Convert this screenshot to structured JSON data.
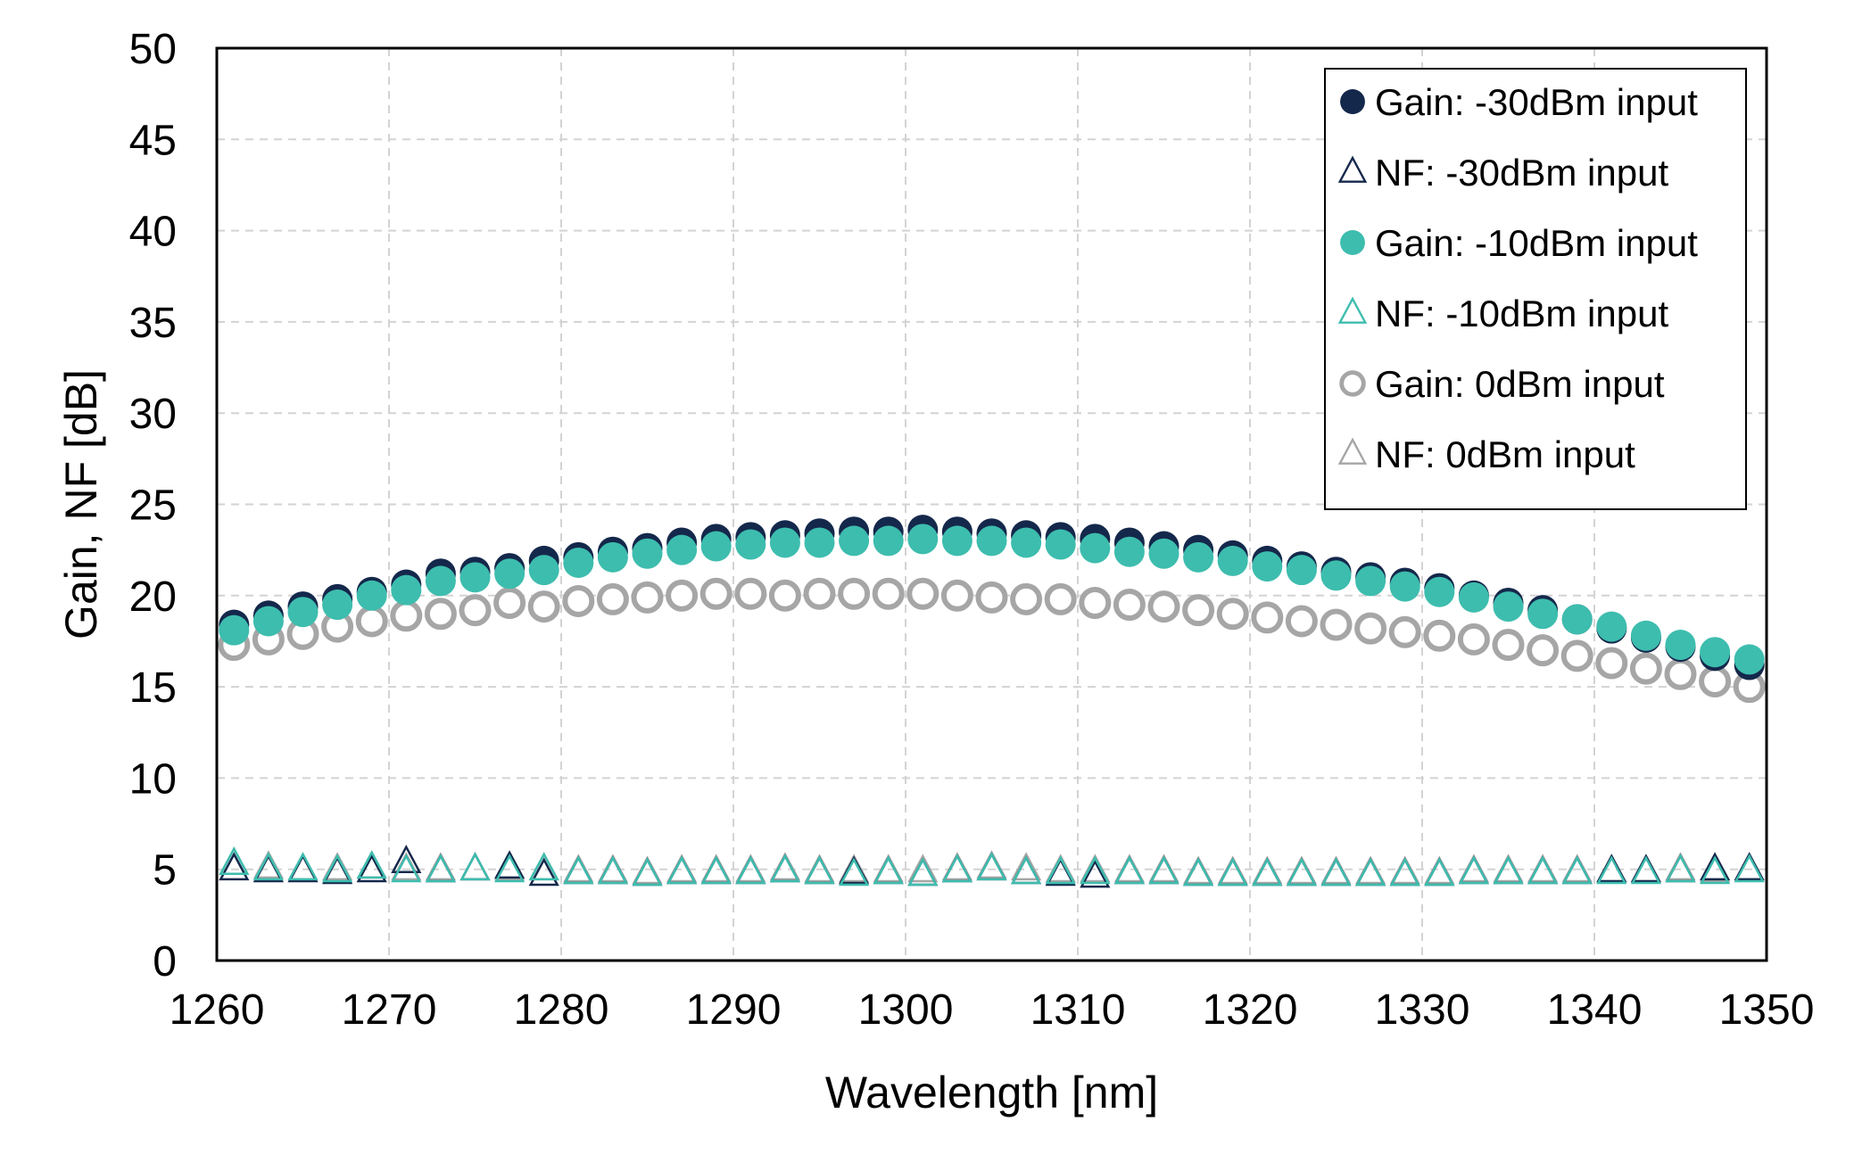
{
  "chart_data": {
    "type": "scatter",
    "title": "",
    "xlabel": "Wavelength [nm]",
    "ylabel": "Gain, NF [dB]",
    "xlim": [
      1260,
      1350
    ],
    "ylim": [
      0,
      50
    ],
    "xticks": [
      "1260",
      "1270",
      "1280",
      "1290",
      "1300",
      "1310",
      "1320",
      "1330",
      "1340",
      "1350"
    ],
    "yticks": [
      "0",
      "5",
      "10",
      "15",
      "20",
      "25",
      "30",
      "35",
      "40",
      "45",
      "50"
    ],
    "grid": true,
    "legend_position": "top-right",
    "x": [
      1261,
      1263,
      1265,
      1267,
      1269,
      1271,
      1273,
      1275,
      1277,
      1279,
      1281,
      1283,
      1285,
      1287,
      1289,
      1291,
      1293,
      1295,
      1297,
      1299,
      1301,
      1303,
      1305,
      1307,
      1309,
      1311,
      1313,
      1315,
      1317,
      1319,
      1321,
      1323,
      1325,
      1327,
      1329,
      1331,
      1333,
      1335,
      1337,
      1339,
      1341,
      1343,
      1345,
      1347,
      1349
    ],
    "series": [
      {
        "name": "Gain: -30dBm input",
        "marker": "filled-circle",
        "color": "#14284B",
        "values": [
          18.4,
          18.9,
          19.4,
          19.8,
          20.2,
          20.6,
          21.2,
          21.3,
          21.5,
          21.9,
          22.1,
          22.4,
          22.6,
          22.9,
          23.1,
          23.2,
          23.3,
          23.4,
          23.5,
          23.5,
          23.6,
          23.5,
          23.4,
          23.3,
          23.2,
          23.1,
          22.9,
          22.7,
          22.5,
          22.2,
          21.9,
          21.6,
          21.3,
          21.0,
          20.7,
          20.4,
          20.0,
          19.6,
          19.2,
          18.7,
          18.2,
          17.7,
          17.2,
          16.7,
          16.2
        ]
      },
      {
        "name": "NF: -30dBm input",
        "marker": "open-triangle",
        "color": "#14284B",
        "values": [
          5.0,
          4.9,
          4.9,
          4.8,
          4.9,
          5.4,
          4.9,
          5.0,
          5.1,
          4.7,
          4.8,
          4.8,
          4.7,
          4.8,
          4.8,
          4.8,
          4.9,
          4.8,
          4.8,
          4.8,
          4.7,
          4.9,
          5.0,
          4.8,
          4.7,
          4.6,
          4.8,
          4.8,
          4.7,
          4.7,
          4.7,
          4.7,
          4.7,
          4.7,
          4.7,
          4.7,
          4.8,
          4.8,
          4.8,
          4.8,
          4.9,
          4.9,
          4.9,
          5.0,
          5.0
        ]
      },
      {
        "name": "Gain: -10dBm input",
        "marker": "filled-circle",
        "color": "#3DBDAE",
        "values": [
          18.1,
          18.6,
          19.1,
          19.5,
          20.0,
          20.3,
          20.8,
          21.0,
          21.2,
          21.4,
          21.8,
          22.1,
          22.3,
          22.5,
          22.7,
          22.8,
          22.9,
          22.9,
          23.0,
          23.0,
          23.1,
          23.0,
          23.0,
          22.9,
          22.8,
          22.6,
          22.4,
          22.3,
          22.1,
          21.9,
          21.6,
          21.4,
          21.1,
          20.8,
          20.5,
          20.2,
          19.9,
          19.4,
          19.0,
          18.7,
          18.3,
          17.8,
          17.3,
          16.9,
          16.5
        ]
      },
      {
        "name": "NF: -10dBm input",
        "marker": "open-triangle",
        "color": "#3DBDAE",
        "values": [
          5.3,
          5.0,
          5.0,
          4.9,
          5.1,
          4.9,
          4.9,
          5.0,
          4.9,
          5.0,
          4.8,
          4.8,
          4.7,
          4.8,
          4.8,
          4.8,
          4.9,
          4.8,
          4.7,
          4.8,
          4.7,
          4.9,
          5.0,
          4.8,
          4.8,
          4.8,
          4.8,
          4.8,
          4.7,
          4.7,
          4.7,
          4.7,
          4.7,
          4.7,
          4.7,
          4.7,
          4.8,
          4.8,
          4.8,
          4.8,
          4.8,
          4.8,
          4.9,
          4.8,
          4.9
        ]
      },
      {
        "name": "Gain: 0dBm input",
        "marker": "open-circle",
        "color": "#A6A6A6",
        "values": [
          17.3,
          17.6,
          17.9,
          18.3,
          18.6,
          18.9,
          19.0,
          19.2,
          19.6,
          19.4,
          19.7,
          19.8,
          19.9,
          20.0,
          20.1,
          20.1,
          20.0,
          20.1,
          20.1,
          20.1,
          20.1,
          20.0,
          19.9,
          19.8,
          19.8,
          19.6,
          19.5,
          19.4,
          19.2,
          19.0,
          18.8,
          18.6,
          18.4,
          18.2,
          18.0,
          17.8,
          17.6,
          17.3,
          17.0,
          16.7,
          16.3,
          16.0,
          15.7,
          15.3,
          15.0
        ]
      },
      {
        "name": "NF: 0dBm input",
        "marker": "open-triangle",
        "color": "#A6A6A6",
        "values": [
          5.3,
          5.1,
          5.0,
          5.0,
          5.1,
          5.0,
          5.0,
          5.0,
          5.0,
          5.0,
          4.9,
          4.9,
          4.8,
          4.9,
          4.9,
          4.9,
          5.0,
          4.9,
          4.9,
          4.9,
          4.9,
          5.0,
          5.1,
          5.0,
          4.9,
          4.9,
          4.9,
          4.9,
          4.8,
          4.8,
          4.8,
          4.8,
          4.8,
          4.8,
          4.8,
          4.8,
          4.9,
          4.9,
          4.9,
          4.9,
          4.9,
          4.9,
          5.0,
          4.9,
          5.0
        ]
      }
    ]
  }
}
